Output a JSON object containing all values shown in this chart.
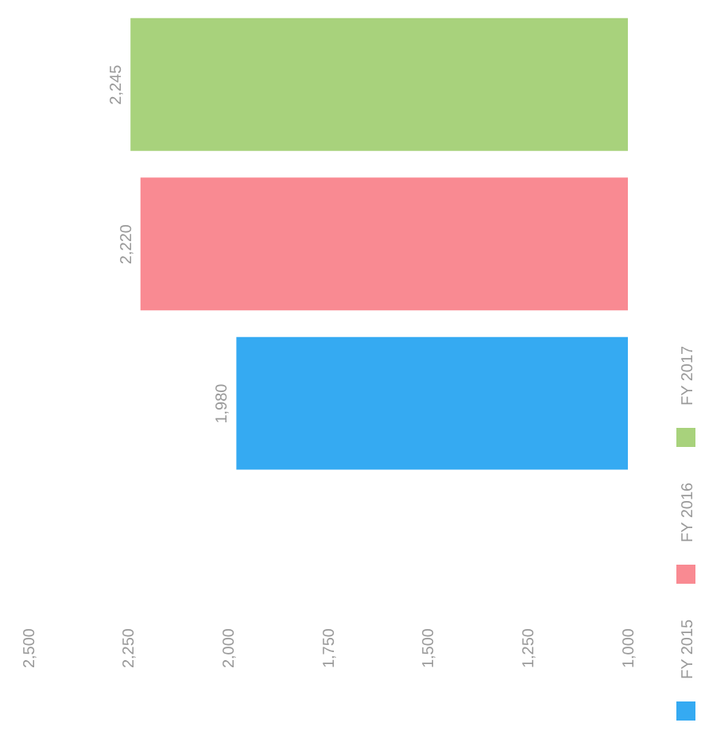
{
  "chart_data": {
    "type": "bar",
    "orientation": "horizontal",
    "categories": [
      null
    ],
    "series": [
      {
        "name": "FY 2017",
        "color": "#a8d27c",
        "values": [
          2245
        ],
        "value_labels": [
          "2,245"
        ]
      },
      {
        "name": "FY 2016",
        "color": "#f98a92",
        "values": [
          2220
        ],
        "value_labels": [
          "2,220"
        ]
      },
      {
        "name": "FY 2015",
        "color": "#35aaf2",
        "values": [
          1980
        ],
        "value_labels": [
          "1,980"
        ]
      }
    ],
    "xlim": [
      2500,
      1000
    ],
    "xticks": [
      {
        "value": 2500,
        "label": "2,500"
      },
      {
        "value": 2250,
        "label": "2,250"
      },
      {
        "value": 2000,
        "label": "2,000"
      },
      {
        "value": 1750,
        "label": "1,750"
      },
      {
        "value": 1500,
        "label": "1,500"
      },
      {
        "value": 1250,
        "label": "1,250"
      },
      {
        "value": 1000,
        "label": "1,000"
      }
    ],
    "legend": "right",
    "grid": false,
    "tick_labels": "x"
  }
}
